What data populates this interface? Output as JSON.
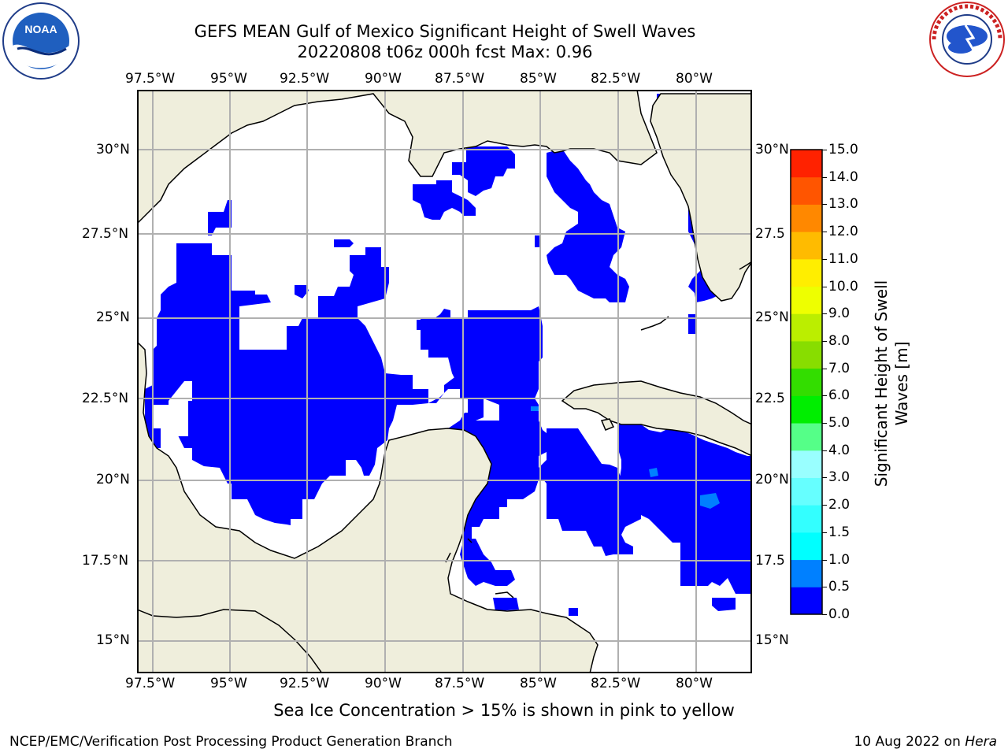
{
  "title": {
    "line1": "GEFS MEAN Gulf of Mexico Significant Height of Swell Waves",
    "line2": "20220808 t06z 000h fcst   Max: 0.96"
  },
  "map": {
    "lon_labels": [
      "97.5°W",
      "95°W",
      "92.5°W",
      "90°W",
      "87.5°W",
      "85°W",
      "82.5°W",
      "80°W"
    ],
    "lat_labels_left": [
      "30°N",
      "27.5°N",
      "25°N",
      "22.5°N",
      "20°N",
      "17.5°N",
      "15°N"
    ],
    "lat_labels_right": [
      "30°N",
      "27.5",
      "25°N",
      "22.5",
      "20°N",
      "17.5",
      "15°N"
    ],
    "colors": {
      "land": "#efeedc",
      "swell_0_05": "#0000ff",
      "swell_05_10": "#0080ff",
      "grid": "#b0b0b0",
      "coast": "#000000"
    }
  },
  "colorbar": {
    "label_line1": "Significant Height of Swell",
    "label_line2": "Waves [m]",
    "ticks": [
      "0.0",
      "0.5",
      "1.0",
      "1.5",
      "2.0",
      "3.0",
      "4.0",
      "5.0",
      "6.0",
      "7.0",
      "8.0",
      "9.0",
      "10.0",
      "11.0",
      "12.0",
      "13.0",
      "14.0",
      "15.0"
    ],
    "colors": [
      "#0000ff",
      "#0080ff",
      "#00ffff",
      "#33ffff",
      "#66ffff",
      "#99ffff",
      "#55ff88",
      "#00ee00",
      "#33dd00",
      "#88dd00",
      "#bbee00",
      "#eeff00",
      "#ffee00",
      "#ffbb00",
      "#ff8800",
      "#ff5500",
      "#ff2200",
      "#ff0000"
    ]
  },
  "logos": {
    "left": "noaa-logo",
    "left_text": "NOAA",
    "right": "nws-logo",
    "right_text": "NATIONAL WEATHER SERVICE"
  },
  "footer": {
    "note": "Sea Ice Concentration > 15% is shown in pink to yellow",
    "left": "NCEP/EMC/Verification Post Processing Product Generation Branch",
    "right_date": "10 Aug 2022 on ",
    "right_host": "Hera"
  }
}
